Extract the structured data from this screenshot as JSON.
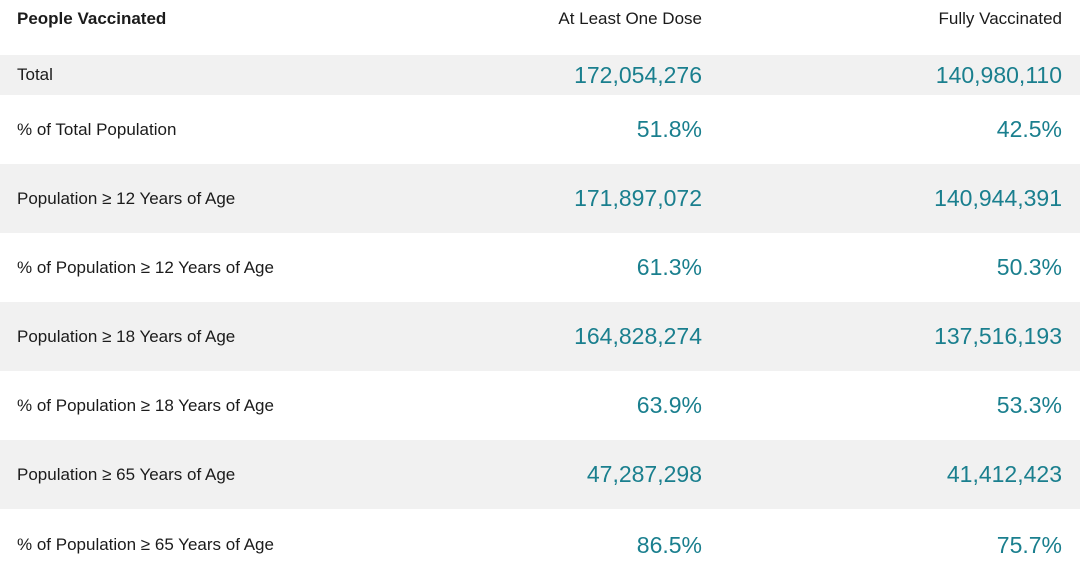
{
  "table": {
    "header": {
      "label": "People Vaccinated",
      "col_one": "At Least One Dose",
      "col_two": "Fully Vaccinated"
    },
    "rows": [
      {
        "label": "Total",
        "one_dose": "172,054,276",
        "fully": "140,980,110"
      },
      {
        "label": "% of Total Population",
        "one_dose": "51.8%",
        "fully": "42.5%"
      },
      {
        "label": "Population ≥ 12 Years of Age",
        "one_dose": "171,897,072",
        "fully": "140,944,391"
      },
      {
        "label": "% of Population ≥ 12 Years of Age",
        "one_dose": "61.3%",
        "fully": "50.3%"
      },
      {
        "label": "Population ≥ 18 Years of Age",
        "one_dose": "164,828,274",
        "fully": "137,516,193"
      },
      {
        "label": "% of Population ≥ 18 Years of Age",
        "one_dose": "63.9%",
        "fully": "53.3%"
      },
      {
        "label": "Population ≥ 65 Years of Age",
        "one_dose": "47,287,298",
        "fully": "41,412,423"
      },
      {
        "label": "% of Population ≥ 65 Years of Age",
        "one_dose": "86.5%",
        "fully": "75.7%"
      }
    ]
  },
  "colors": {
    "value_teal": "#1a7f8e",
    "row_shade": "#f1f1f1",
    "text": "#1b1b1b"
  }
}
